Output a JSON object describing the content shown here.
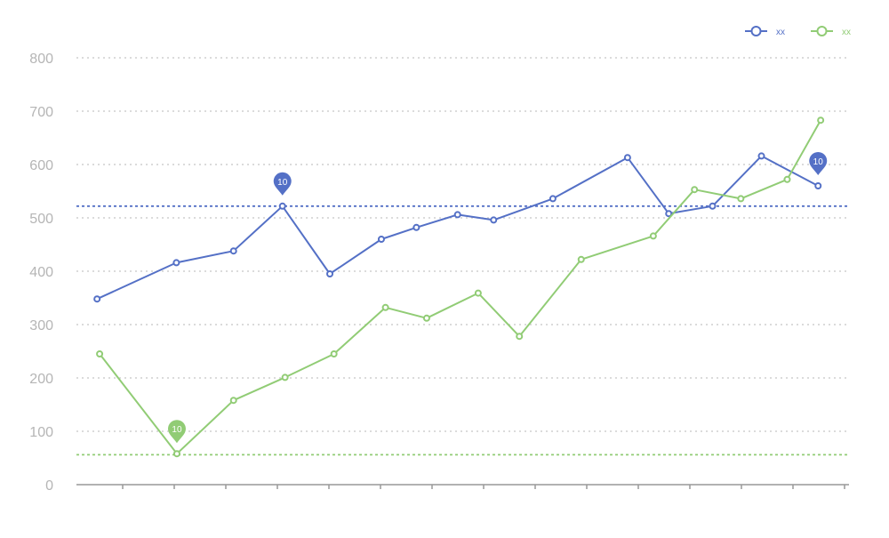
{
  "chart_data": {
    "type": "line",
    "title": "",
    "xlabel": "",
    "ylabel": "",
    "ylim": [
      0,
      800
    ],
    "yticks": [
      0,
      100,
      200,
      300,
      400,
      500,
      600,
      700,
      800
    ],
    "grid": true,
    "legend_position": "top-right",
    "series": [
      {
        "name": "xx",
        "color": "#5470c6",
        "points": [
          [
            0.4,
            348
          ],
          [
            1.94,
            416
          ],
          [
            3.05,
            438
          ],
          [
            4.0,
            522
          ],
          [
            4.92,
            395
          ],
          [
            5.92,
            460
          ],
          [
            6.6,
            482
          ],
          [
            7.4,
            506
          ],
          [
            8.1,
            496
          ],
          [
            9.25,
            536
          ],
          [
            10.7,
            613
          ],
          [
            11.5,
            508
          ],
          [
            12.35,
            522
          ],
          [
            13.3,
            616
          ],
          [
            14.4,
            560
          ]
        ],
        "markline_value": 522,
        "markpoint": {
          "x": 4.0,
          "y": 522,
          "label": "10"
        },
        "markpoint_end": {
          "x": 14.4,
          "y": 560,
          "label": "10"
        }
      },
      {
        "name": "xx",
        "color": "#91cc75",
        "points": [
          [
            0.45,
            245
          ],
          [
            1.95,
            58
          ],
          [
            3.05,
            158
          ],
          [
            4.05,
            201
          ],
          [
            5.0,
            245
          ],
          [
            6.0,
            332
          ],
          [
            6.8,
            312
          ],
          [
            7.8,
            359
          ],
          [
            8.6,
            278
          ],
          [
            9.8,
            422
          ],
          [
            11.2,
            466
          ],
          [
            12.0,
            553
          ],
          [
            12.9,
            536
          ],
          [
            13.8,
            572
          ],
          [
            14.45,
            683
          ]
        ],
        "markline_value": 56,
        "markpoint": {
          "x": 1.95,
          "y": 58,
          "label": "10"
        }
      }
    ]
  }
}
